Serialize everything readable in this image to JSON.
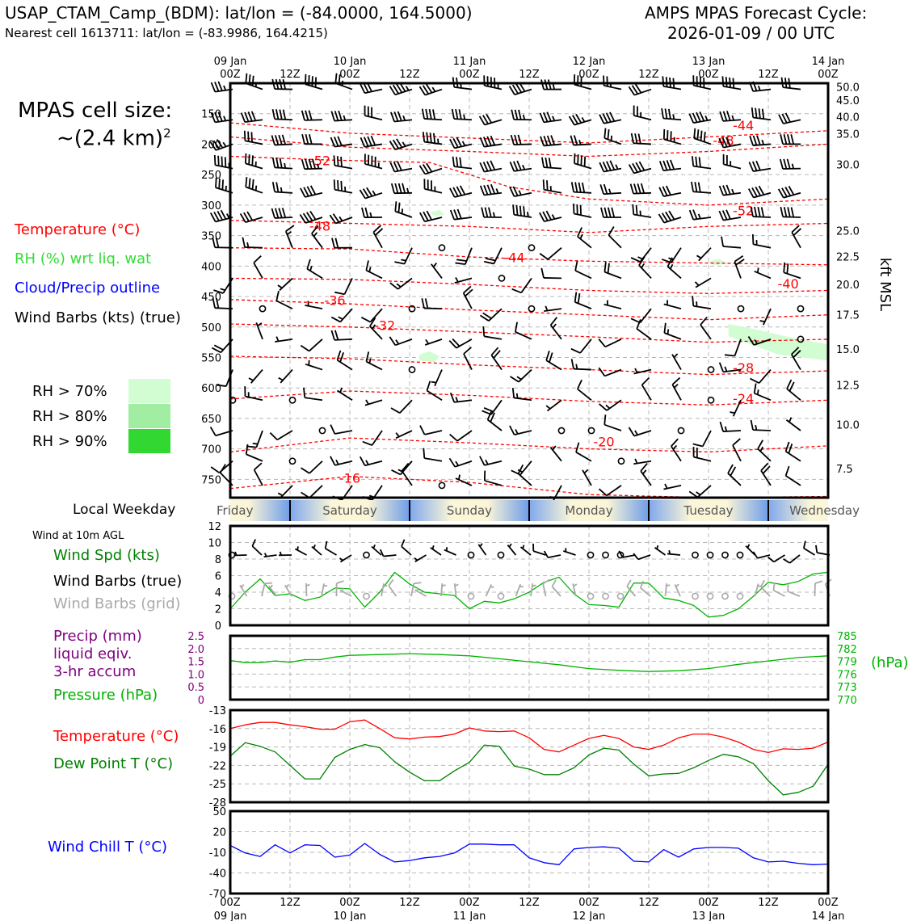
{
  "header": {
    "station_line": "USAP_CTAM_Camp_(BDM): lat/lon = (-84.0000, 164.5000)",
    "cell_line": "Nearest cell 1613711: lat/lon = (-83.9986, 164.4215)",
    "cycle_title": "AMPS MPAS Forecast Cycle:",
    "cycle_value": "2026-01-09 / 00 UTC"
  },
  "colors": {
    "temperature": "#ff0000",
    "rh": "#33dd33",
    "cloud": "#0000ff",
    "wind": "#000000",
    "wind_grid": "#aaaaaa",
    "precip": "#800080",
    "pressure": "#00b300",
    "dewpoint": "#008000",
    "windchill": "#0000ff"
  },
  "left_panel": {
    "cell_size_title": "MPAS cell size:",
    "cell_size_value": "~(2.4 km)",
    "cell_size_exp": "2",
    "legend": {
      "temperature": "Temperature (°C)",
      "rh": "RH (%) wrt liq. wat",
      "cloud": "Cloud/Precip outline",
      "wind": "Wind Barbs (kts) (true)"
    },
    "rh_levels": [
      {
        "label": "RH > 70%",
        "color": "#d2fcd2"
      },
      {
        "label": "RH > 80%",
        "color": "#a1eda1"
      },
      {
        "label": "RH > 90%",
        "color": "#32d732"
      }
    ],
    "weekday_title": "Local Weekday",
    "wind10_title": "Wind at 10m AGL",
    "wind_spd": "Wind Spd (kts)",
    "wind_true": "Wind Barbs (true)",
    "wind_grid": "Wind Barbs (grid)",
    "precip_line1": "Precip (mm)",
    "precip_line2": "liquid eqiv.",
    "precip_line3": "3-hr accum",
    "pressure": "Pressure (hPa)",
    "temperature": "Temperature (°C)",
    "dewpoint": "Dew Point T (°C)",
    "windchill": "Wind Chill T (°C)"
  },
  "time_axis": {
    "top_dates": [
      "09 Jan",
      "10 Jan",
      "11 Jan",
      "12 Jan",
      "13 Jan",
      "14 Jan"
    ],
    "hour_labels": [
      "00Z",
      "12Z",
      "00Z",
      "12Z",
      "00Z",
      "12Z",
      "00Z",
      "12Z",
      "00Z",
      "12Z",
      "00Z"
    ],
    "bottom_dates": [
      "09 Jan",
      "10 Jan",
      "11 Jan",
      "12 Jan",
      "13 Jan",
      "14 Jan"
    ]
  },
  "weekdays": [
    "Friday",
    "Saturday",
    "Sunday",
    "Monday",
    "Tuesday",
    "Wednesday"
  ],
  "chart_data": [
    {
      "type": "heatmap",
      "name": "upper-air cross section",
      "x_unit": "forecast hour",
      "xlim": [
        0,
        120
      ],
      "ylabel_left": "hPa",
      "ylabel_right": "kft MSL",
      "ylim_hpa": [
        100,
        780
      ],
      "pressure_ticks": [
        150,
        200,
        250,
        300,
        350,
        400,
        450,
        500,
        550,
        600,
        650,
        700,
        750
      ],
      "kft_labels": [
        {
          "label": "50.0",
          "p": 106
        },
        {
          "label": "45.0",
          "p": 128
        },
        {
          "label": "40.0",
          "p": 155
        },
        {
          "label": "35.0",
          "p": 183
        },
        {
          "label": "30.0",
          "p": 233
        },
        {
          "label": "25.0",
          "p": 342
        },
        {
          "label": "22.5",
          "p": 384
        },
        {
          "label": "20.0",
          "p": 430
        },
        {
          "label": "17.5",
          "p": 480
        },
        {
          "label": "15.0",
          "p": 536
        },
        {
          "label": "12.5",
          "p": 595
        },
        {
          "label": "10.0",
          "p": 660
        },
        {
          "label": "7.5",
          "p": 732
        }
      ],
      "temperature_contours": [
        {
          "value": -44,
          "x": [
            0,
            24,
            48,
            72,
            96,
            120
          ],
          "p": [
            165,
            182,
            190,
            198,
            188,
            178
          ]
        },
        {
          "value": -48,
          "x": [
            0,
            24,
            48,
            72,
            96,
            120
          ],
          "p": [
            188,
            205,
            212,
            220,
            212,
            200
          ]
        },
        {
          "value": -52,
          "x": [
            0,
            20,
            40,
            48,
            56,
            72,
            96,
            120
          ],
          "p": [
            220,
            226,
            230,
            250,
            270,
            290,
            300,
            290
          ]
        },
        {
          "value": -48,
          "x": [
            0,
            24,
            48,
            72,
            96,
            120
          ],
          "p": [
            325,
            330,
            335,
            345,
            335,
            330
          ]
        },
        {
          "value": -44,
          "x": [
            0,
            24,
            48,
            72,
            96,
            120
          ],
          "p": [
            370,
            372,
            385,
            392,
            395,
            398
          ]
        },
        {
          "value": -40,
          "x": [
            0,
            24,
            48,
            72,
            96,
            120
          ],
          "p": [
            420,
            422,
            430,
            440,
            445,
            440
          ]
        },
        {
          "value": -36,
          "x": [
            0,
            24,
            48,
            72,
            96,
            120
          ],
          "p": [
            455,
            462,
            472,
            480,
            488,
            480
          ]
        },
        {
          "value": -32,
          "x": [
            0,
            24,
            48,
            72,
            96,
            120
          ],
          "p": [
            495,
            500,
            508,
            516,
            525,
            520
          ]
        },
        {
          "value": -28,
          "x": [
            0,
            24,
            48,
            72,
            96,
            120
          ],
          "p": [
            548,
            552,
            562,
            570,
            578,
            572
          ]
        },
        {
          "value": -24,
          "x": [
            0,
            24,
            48,
            72,
            96,
            120
          ],
          "p": [
            618,
            605,
            612,
            622,
            628,
            620
          ]
        },
        {
          "value": -20,
          "x": [
            0,
            24,
            48,
            72,
            96,
            120
          ],
          "p": [
            705,
            682,
            690,
            700,
            705,
            695
          ]
        },
        {
          "value": -16,
          "x": [
            0,
            24,
            48,
            72,
            96,
            120
          ],
          "p": [
            765,
            745,
            755,
            775,
            780,
            778
          ]
        }
      ],
      "contour_labels": [
        {
          "text": "-44",
          "x": 103,
          "p": 170
        },
        {
          "text": "-48",
          "x": 99,
          "p": 195
        },
        {
          "text": "-52",
          "x": 18,
          "p": 228
        },
        {
          "text": "-52",
          "x": 103,
          "p": 310
        },
        {
          "text": "-48",
          "x": 18,
          "p": 335
        },
        {
          "text": "-44",
          "x": 57,
          "p": 387
        },
        {
          "text": "-40",
          "x": 112,
          "p": 430
        },
        {
          "text": "-36",
          "x": 21,
          "p": 457
        },
        {
          "text": "-32",
          "x": 31,
          "p": 498
        },
        {
          "text": "-28",
          "x": 103,
          "p": 568
        },
        {
          "text": "-24",
          "x": 103,
          "p": 618
        },
        {
          "text": "-20",
          "x": 75,
          "p": 689
        },
        {
          "text": "-16",
          "x": 24,
          "p": 749
        }
      ],
      "rh_regions": [
        {
          "level": 70,
          "x": [
            100,
            106,
            114,
            120,
            120,
            110,
            100
          ],
          "p": [
            495,
            505,
            520,
            528,
            555,
            545,
            515
          ]
        },
        {
          "level": 70,
          "x": [
            38,
            40,
            42,
            41,
            38
          ],
          "p": [
            545,
            540,
            548,
            558,
            555
          ]
        },
        {
          "level": 70,
          "x": [
            96,
            98,
            100,
            97
          ],
          "p": [
            393,
            388,
            396,
            398
          ]
        },
        {
          "level": 70,
          "x": [
            40,
            42,
            43,
            41
          ],
          "p": [
            312,
            308,
            316,
            318
          ]
        }
      ],
      "wind_levels_hpa": [
        110,
        160,
        200,
        240,
        280,
        320,
        370,
        420,
        470,
        520,
        570,
        620,
        670,
        720,
        760
      ],
      "wind_times_hr": [
        0,
        6,
        12,
        18,
        24,
        30,
        36,
        42,
        48,
        54,
        60,
        66,
        72,
        78,
        84,
        90,
        96,
        102,
        108,
        114,
        120
      ]
    },
    {
      "type": "line",
      "name": "10m wind",
      "title": "Wind at 10m AGL",
      "ylim": [
        0,
        12
      ],
      "yticks": [
        0,
        2,
        4,
        6,
        8,
        10,
        12
      ],
      "x": [
        0,
        3,
        6,
        9,
        12,
        15,
        18,
        21,
        24,
        27,
        30,
        33,
        36,
        39,
        42,
        45,
        48,
        51,
        54,
        57,
        60,
        63,
        66,
        69,
        72,
        75,
        78,
        81,
        84,
        87,
        90,
        93,
        96,
        99,
        102,
        105,
        108,
        111,
        114,
        117,
        120
      ],
      "series": [
        {
          "name": "Wind Spd (kts)",
          "values": [
            2,
            4,
            5.6,
            3.6,
            3.8,
            3,
            3.4,
            4.5,
            4.4,
            2.2,
            4,
            6.4,
            5,
            4,
            3.8,
            3.6,
            2,
            2.9,
            2.7,
            3.2,
            4,
            5.2,
            5.8,
            3.8,
            2.5,
            2.4,
            2.2,
            5.1,
            5.1,
            3.3,
            3,
            2.4,
            1,
            1.2,
            2,
            3.5,
            5.2,
            4.9,
            5.3,
            6.2,
            6.4
          ]
        }
      ],
      "wind_times_hr": [
        0,
        3,
        6,
        9,
        12,
        15,
        18,
        21,
        24,
        27,
        30,
        33,
        36,
        39,
        42,
        45,
        48,
        51,
        54,
        57,
        60,
        63,
        66,
        69,
        72,
        75,
        78,
        81,
        84,
        87,
        90,
        93,
        96,
        99,
        102,
        105,
        108,
        111,
        114,
        117,
        120
      ]
    },
    {
      "type": "line",
      "name": "precip and pressure",
      "ylim_left": [
        0,
        2.5
      ],
      "yticks_left": [
        "0",
        "0.5",
        "1.0",
        "1.5",
        "2.0",
        "2.5"
      ],
      "ylim_right": [
        770,
        785
      ],
      "yticks_right": [
        "770",
        "773",
        "776",
        "779",
        "782",
        "785"
      ],
      "ylabel_right": "(hPa)",
      "x": [
        0,
        3,
        6,
        9,
        12,
        15,
        18,
        21,
        24,
        30,
        36,
        42,
        48,
        54,
        60,
        66,
        72,
        78,
        84,
        90,
        96,
        102,
        108,
        114,
        120
      ],
      "series": [
        {
          "name": "Pressure (hPa)",
          "values": [
            779.2,
            778.7,
            778.7,
            779.1,
            778.8,
            779.4,
            779.4,
            780,
            780.4,
            780.6,
            780.8,
            780.6,
            780.3,
            779.6,
            778.9,
            778.2,
            777.3,
            776.9,
            776.6,
            776.8,
            777.3,
            778.3,
            779.1,
            779.9,
            780.3
          ]
        },
        {
          "name": "Precip (mm)",
          "values": [
            0,
            0,
            0,
            0,
            0,
            0,
            0,
            0,
            0,
            0,
            0,
            0,
            0,
            0,
            0,
            0,
            0,
            0,
            0,
            0,
            0,
            0,
            0,
            0,
            0
          ]
        }
      ]
    },
    {
      "type": "line",
      "name": "temperature and dew point",
      "ylim": [
        -28,
        -13
      ],
      "yticks": [
        "-28",
        "-25",
        "-22",
        "-19",
        "-16",
        "-13"
      ],
      "x": [
        0,
        3,
        6,
        9,
        12,
        15,
        18,
        21,
        24,
        27,
        30,
        33,
        36,
        39,
        42,
        45,
        48,
        51,
        54,
        57,
        60,
        63,
        66,
        69,
        72,
        75,
        78,
        81,
        84,
        87,
        90,
        93,
        96,
        99,
        102,
        105,
        108,
        111,
        114,
        117,
        120
      ],
      "series": [
        {
          "name": "Temperature (°C)",
          "values": [
            -16,
            -15.4,
            -15,
            -15,
            -15.4,
            -15.7,
            -16.1,
            -16.1,
            -14.9,
            -14.6,
            -16,
            -17.5,
            -17.7,
            -17.4,
            -17.3,
            -16.9,
            -15.9,
            -16.4,
            -16.5,
            -16.4,
            -17.5,
            -19.4,
            -19.8,
            -18.7,
            -17.6,
            -17.1,
            -17.6,
            -19,
            -19.4,
            -18.7,
            -17.5,
            -16.9,
            -16.9,
            -17.4,
            -18.2,
            -19.4,
            -19.9,
            -19.3,
            -19.4,
            -19.2,
            -18.2
          ]
        },
        {
          "name": "Dew Point T (°C)",
          "values": [
            -20.5,
            -18.3,
            -18.9,
            -19.8,
            -22,
            -24.2,
            -24.2,
            -20.7,
            -19.4,
            -18.6,
            -19.1,
            -21.4,
            -23.1,
            -24.5,
            -24.5,
            -22.9,
            -21.5,
            -18.7,
            -18.9,
            -22.1,
            -22.6,
            -23.5,
            -23.5,
            -22.4,
            -20.3,
            -19.2,
            -19.5,
            -21.8,
            -23.7,
            -23.4,
            -23.3,
            -22.4,
            -21.2,
            -20.2,
            -20.6,
            -21.7,
            -24.5,
            -26.8,
            -26.4,
            -25.4,
            -21.8
          ]
        }
      ]
    },
    {
      "type": "line",
      "name": "wind chill",
      "ylim": [
        -70,
        50
      ],
      "yticks": [
        "-70",
        "-40",
        "-10",
        "20",
        "50"
      ],
      "x": [
        0,
        3,
        6,
        9,
        12,
        15,
        18,
        21,
        24,
        27,
        30,
        33,
        36,
        39,
        42,
        45,
        48,
        51,
        54,
        57,
        60,
        63,
        66,
        69,
        72,
        75,
        78,
        81,
        84,
        87,
        90,
        93,
        96,
        99,
        102,
        105,
        108,
        111,
        114,
        117,
        120
      ],
      "series": [
        {
          "name": "Wind Chill T (°C)",
          "values": [
            0,
            -11,
            -16,
            1,
            -11,
            1,
            0,
            -17,
            -14,
            3,
            -13,
            -24,
            -22,
            -18,
            -16,
            -11,
            2,
            2,
            1,
            1,
            -18,
            -25,
            -28,
            -5,
            -3,
            -2,
            -4,
            -23,
            -24,
            -6,
            -17,
            -5,
            -3,
            -3,
            -4,
            -18,
            -24,
            -23,
            -26,
            -28,
            -27
          ]
        }
      ]
    }
  ]
}
